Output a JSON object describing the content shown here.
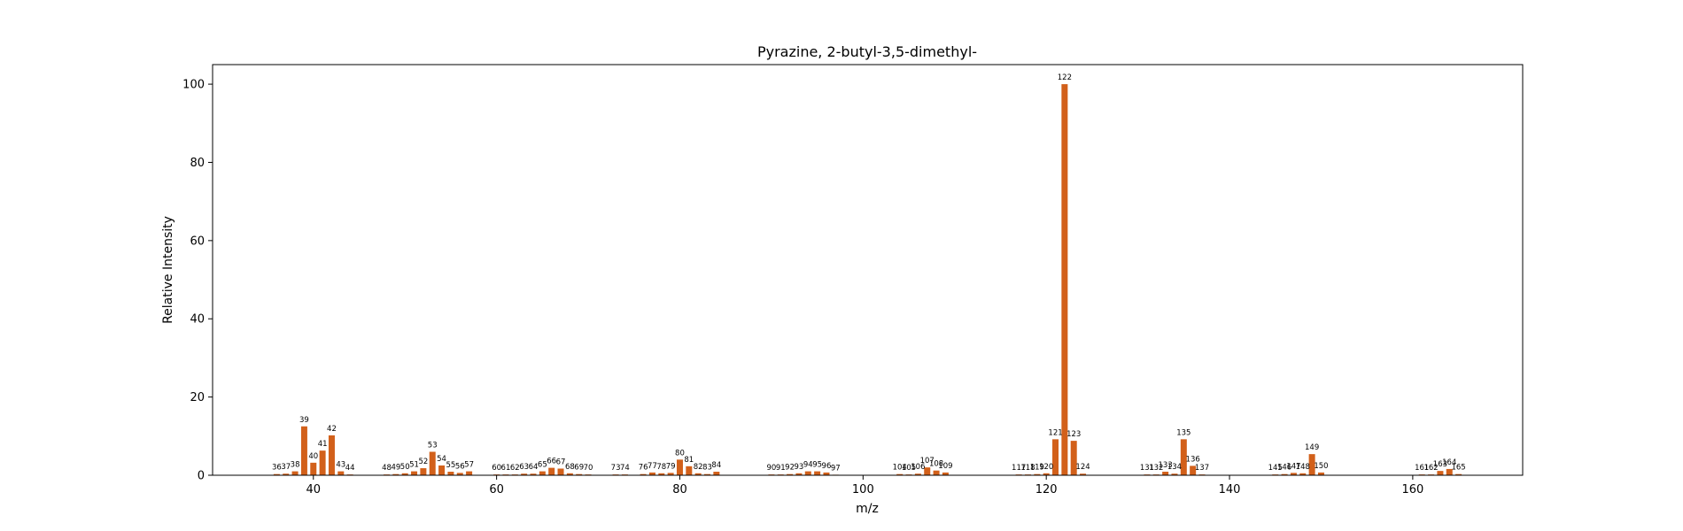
{
  "chart_data": {
    "type": "bar",
    "title": "Pyrazine, 2-butyl-3,5-dimethyl-",
    "xlabel": "m/z",
    "ylabel": "Relative Intensity",
    "xlim": [
      29,
      172
    ],
    "ylim": [
      0,
      105
    ],
    "xticks": [
      40,
      60,
      80,
      100,
      120,
      140,
      160
    ],
    "yticks": [
      0,
      20,
      40,
      60,
      80,
      100
    ],
    "bar_color": "#d2601a",
    "grid": false,
    "peaks": [
      {
        "mz": 36,
        "intensity": 0.3
      },
      {
        "mz": 37,
        "intensity": 0.4
      },
      {
        "mz": 38,
        "intensity": 1.0
      },
      {
        "mz": 39,
        "intensity": 12.5
      },
      {
        "mz": 40,
        "intensity": 3.2
      },
      {
        "mz": 41,
        "intensity": 6.3
      },
      {
        "mz": 42,
        "intensity": 10.2
      },
      {
        "mz": 43,
        "intensity": 1.0
      },
      {
        "mz": 44,
        "intensity": 0.2
      },
      {
        "mz": 48,
        "intensity": 0.2
      },
      {
        "mz": 49,
        "intensity": 0.3
      },
      {
        "mz": 50,
        "intensity": 0.5
      },
      {
        "mz": 51,
        "intensity": 1.0
      },
      {
        "mz": 52,
        "intensity": 1.8
      },
      {
        "mz": 53,
        "intensity": 6.0
      },
      {
        "mz": 54,
        "intensity": 2.5
      },
      {
        "mz": 55,
        "intensity": 0.9
      },
      {
        "mz": 56,
        "intensity": 0.6
      },
      {
        "mz": 57,
        "intensity": 1.0
      },
      {
        "mz": 60,
        "intensity": 0.2
      },
      {
        "mz": 61,
        "intensity": 0.2
      },
      {
        "mz": 62,
        "intensity": 0.2
      },
      {
        "mz": 63,
        "intensity": 0.4
      },
      {
        "mz": 64,
        "intensity": 0.4
      },
      {
        "mz": 65,
        "intensity": 1.0
      },
      {
        "mz": 66,
        "intensity": 1.9
      },
      {
        "mz": 67,
        "intensity": 1.7
      },
      {
        "mz": 68,
        "intensity": 0.5
      },
      {
        "mz": 69,
        "intensity": 0.3
      },
      {
        "mz": 70,
        "intensity": 0.2
      },
      {
        "mz": 73,
        "intensity": 0.2
      },
      {
        "mz": 74,
        "intensity": 0.2
      },
      {
        "mz": 76,
        "intensity": 0.3
      },
      {
        "mz": 77,
        "intensity": 0.7
      },
      {
        "mz": 78,
        "intensity": 0.5
      },
      {
        "mz": 79,
        "intensity": 0.6
      },
      {
        "mz": 80,
        "intensity": 4.0
      },
      {
        "mz": 81,
        "intensity": 2.3
      },
      {
        "mz": 82,
        "intensity": 0.5
      },
      {
        "mz": 83,
        "intensity": 0.3
      },
      {
        "mz": 84,
        "intensity": 0.9
      },
      {
        "mz": 90,
        "intensity": 0.2
      },
      {
        "mz": 91,
        "intensity": 0.2
      },
      {
        "mz": 92,
        "intensity": 0.3
      },
      {
        "mz": 93,
        "intensity": 0.5
      },
      {
        "mz": 94,
        "intensity": 1.0
      },
      {
        "mz": 95,
        "intensity": 1.0
      },
      {
        "mz": 96,
        "intensity": 0.7
      },
      {
        "mz": 97,
        "intensity": 0.1
      },
      {
        "mz": 104,
        "intensity": 0.3
      },
      {
        "mz": 105,
        "intensity": 0.2
      },
      {
        "mz": 106,
        "intensity": 0.4
      },
      {
        "mz": 107,
        "intensity": 2.0
      },
      {
        "mz": 108,
        "intensity": 1.2
      },
      {
        "mz": 109,
        "intensity": 0.7
      },
      {
        "mz": 117,
        "intensity": 0.2
      },
      {
        "mz": 118,
        "intensity": 0.2
      },
      {
        "mz": 119,
        "intensity": 0.3
      },
      {
        "mz": 120,
        "intensity": 0.5
      },
      {
        "mz": 121,
        "intensity": 9.2
      },
      {
        "mz": 122,
        "intensity": 100.0
      },
      {
        "mz": 123,
        "intensity": 8.8
      },
      {
        "mz": 124,
        "intensity": 0.4
      },
      {
        "mz": 131,
        "intensity": 0.2
      },
      {
        "mz": 132,
        "intensity": 0.2
      },
      {
        "mz": 133,
        "intensity": 0.9
      },
      {
        "mz": 134,
        "intensity": 0.4
      },
      {
        "mz": 135,
        "intensity": 9.2
      },
      {
        "mz": 136,
        "intensity": 2.4
      },
      {
        "mz": 137,
        "intensity": 0.2
      },
      {
        "mz": 145,
        "intensity": 0.2
      },
      {
        "mz": 146,
        "intensity": 0.3
      },
      {
        "mz": 147,
        "intensity": 0.6
      },
      {
        "mz": 148,
        "intensity": 0.5
      },
      {
        "mz": 149,
        "intensity": 5.4
      },
      {
        "mz": 150,
        "intensity": 0.7
      },
      {
        "mz": 161,
        "intensity": 0.2
      },
      {
        "mz": 162,
        "intensity": 0.2
      },
      {
        "mz": 163,
        "intensity": 1.1
      },
      {
        "mz": 164,
        "intensity": 1.6
      },
      {
        "mz": 165,
        "intensity": 0.3
      }
    ]
  }
}
